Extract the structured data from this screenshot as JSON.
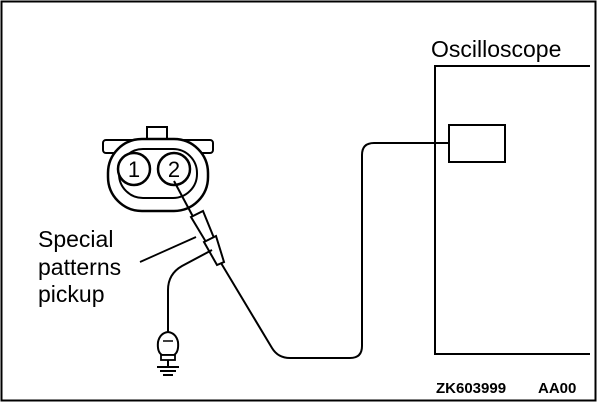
{
  "labels": {
    "oscilloscope": "Oscilloscope",
    "pickup_line1": "Special",
    "pickup_line2": "patterns",
    "pickup_line3": "pickup",
    "pin1": "1",
    "pin2": "2",
    "figure_code": "ZK603999",
    "figure_suffix": "AA00"
  },
  "colors": {
    "line": "#000000",
    "background": "#ffffff"
  }
}
